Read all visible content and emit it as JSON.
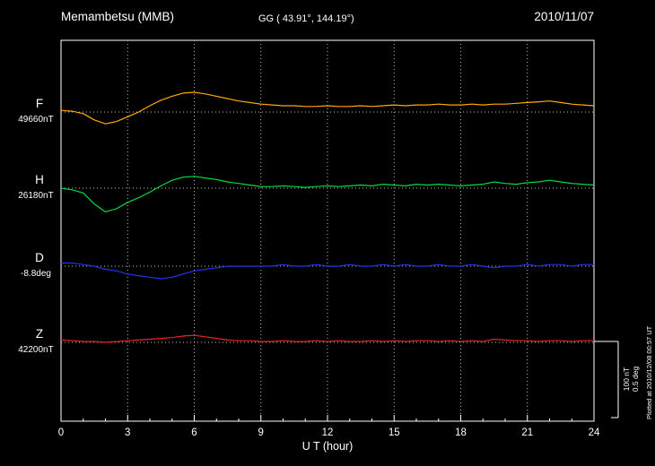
{
  "header": {
    "station": "Memambetsu (MMB)",
    "coords": "GG ( 43.91°, 144.19°)",
    "date": "2010/11/07"
  },
  "axes": {
    "xlabel": "U T (hour)",
    "xticks": [
      "0",
      "3",
      "6",
      "9",
      "12",
      "15",
      "18",
      "21",
      "24"
    ]
  },
  "scalebar": {
    "label_nt": "100 nT",
    "label_deg": "0.5 deg"
  },
  "footer_note": "Plotted at 2010/12/08 00:57 UT",
  "colors": {
    "background": "#000000",
    "frame": "#ffffff",
    "grid_dots": "#bbbbbb",
    "F": "#ffaa00",
    "H": "#00dd44",
    "D": "#2233ee",
    "Z": "#ee2222"
  },
  "chart_data": {
    "type": "line",
    "title": "Memambetsu (MMB) magnetogram",
    "subtitle": "GG ( 43.91°, 144.19°)",
    "date": "2010/11/07",
    "xlabel": "U T (hour)",
    "xlim": [
      0,
      24
    ],
    "x_start": 0,
    "x_step_hours": 0.5,
    "grid": "dotted vertical every 3 h, dotted horizontal baseline per trace",
    "scale_division": {
      "nT": 100,
      "deg": 0.5
    },
    "series": [
      {
        "name": "F",
        "unit": "nT",
        "baseline": 49660,
        "baseline_label": "49660nT",
        "color": "#ffaa00",
        "offsets": [
          2,
          1,
          -2,
          -10,
          -15,
          -12,
          -6,
          0,
          8,
          15,
          20,
          24,
          25,
          23,
          20,
          17,
          14,
          12,
          10,
          9,
          8,
          8,
          7,
          7,
          8,
          7,
          7,
          8,
          7,
          8,
          9,
          8,
          9,
          9,
          10,
          9,
          9,
          10,
          9,
          10,
          10,
          11,
          12,
          13,
          14,
          12,
          10,
          9,
          8
        ]
      },
      {
        "name": "H",
        "unit": "nT",
        "baseline": 26180,
        "baseline_label": "26180nT",
        "color": "#00dd44",
        "offsets": [
          0,
          -2,
          -6,
          -20,
          -30,
          -26,
          -18,
          -12,
          -5,
          3,
          10,
          14,
          15,
          13,
          11,
          8,
          6,
          4,
          2,
          2,
          3,
          2,
          1,
          2,
          3,
          2,
          3,
          4,
          3,
          5,
          4,
          3,
          5,
          4,
          5,
          4,
          3,
          4,
          5,
          8,
          6,
          5,
          7,
          8,
          10,
          8,
          6,
          5,
          4
        ]
      },
      {
        "name": "D",
        "unit": "deg",
        "baseline": -8.8,
        "baseline_label": "-8.8deg",
        "color": "#2233ee",
        "offsets": [
          0.02,
          0.02,
          0.01,
          0,
          -0.02,
          -0.03,
          -0.05,
          -0.06,
          -0.07,
          -0.08,
          -0.07,
          -0.05,
          -0.03,
          -0.02,
          -0.01,
          0,
          0,
          0,
          0,
          0,
          0.01,
          0,
          0,
          0.01,
          0,
          0,
          0.01,
          0,
          0,
          0.01,
          0,
          0.01,
          0,
          0,
          0.01,
          0,
          0,
          0.01,
          0,
          -0.01,
          0,
          0,
          0.01,
          0,
          0.01,
          0.01,
          0,
          0.01,
          0.01
        ]
      },
      {
        "name": "Z",
        "unit": "nT",
        "baseline": 42200,
        "baseline_label": "42200nT",
        "color": "#ee2222",
        "offsets": [
          3,
          2,
          1,
          1,
          0,
          1,
          2,
          3,
          4,
          5,
          6,
          8,
          9,
          7,
          5,
          3,
          2,
          2,
          1,
          1,
          2,
          1,
          1,
          2,
          1,
          2,
          1,
          1,
          2,
          1,
          2,
          1,
          2,
          2,
          1,
          2,
          1,
          2,
          1,
          4,
          3,
          2,
          2,
          1,
          2,
          2,
          1,
          2,
          2
        ]
      }
    ]
  }
}
